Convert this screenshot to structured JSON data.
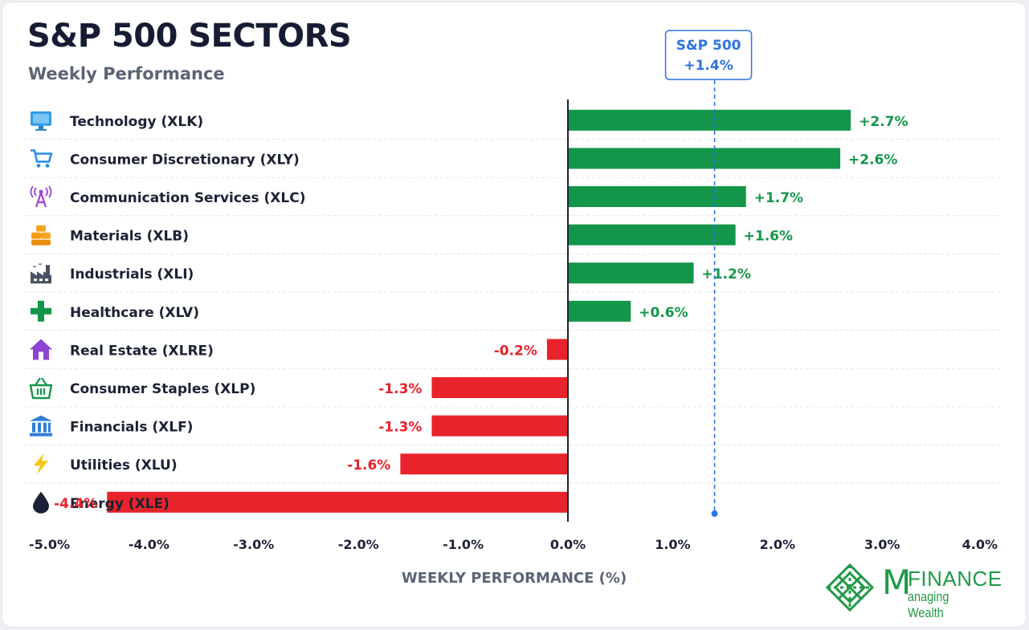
{
  "header": {
    "title": "S&P 500 SECTORS",
    "subtitle": "Weekly Performance"
  },
  "benchmark": {
    "label": "S&P 500",
    "value_label": "+1.4%",
    "value": 1.4
  },
  "colors": {
    "positive": "#13964a",
    "negative": "#e8232b",
    "benchmark": "#2d74e0",
    "text": "#1c2235"
  },
  "chart_data": {
    "type": "bar",
    "orientation": "horizontal",
    "title": "S&P 500 SECTORS",
    "subtitle": "Weekly Performance",
    "xlabel": "WEEKLY PERFORMANCE (%)",
    "xlim": [
      -5.0,
      4.0
    ],
    "ticks": [
      -5.0,
      -4.0,
      -3.0,
      -2.0,
      -1.0,
      0.0,
      1.0,
      2.0,
      3.0,
      4.0
    ],
    "tick_labels": [
      "-5.0%",
      "-4.0%",
      "-3.0%",
      "-2.0%",
      "-1.0%",
      "0.0%",
      "1.0%",
      "2.0%",
      "3.0%",
      "4.0%"
    ],
    "grid": true,
    "categories": [
      "Technology (XLK)",
      "Consumer Discretionary (XLY)",
      "Communication Services (XLC)",
      "Materials (XLB)",
      "Industrials (XLI)",
      "Healthcare (XLV)",
      "Real Estate (XLRE)",
      "Consumer Staples (XLP)",
      "Financials (XLF)",
      "Utilities (XLU)",
      "Energy (XLE)"
    ],
    "values": [
      2.7,
      2.6,
      1.7,
      1.6,
      1.2,
      0.6,
      -0.2,
      -1.3,
      -1.3,
      -1.6,
      -4.4
    ],
    "value_labels": [
      "+2.7%",
      "+2.6%",
      "+1.7%",
      "+1.6%",
      "+1.2%",
      "+0.6%",
      "-0.2%",
      "-1.3%",
      "-1.3%",
      "-1.6%",
      "-4.4%"
    ],
    "icons": [
      "monitor-icon",
      "shopping-cart-icon",
      "broadcast-tower-icon",
      "stacked-bars-icon",
      "factory-icon",
      "medical-cross-icon",
      "house-icon",
      "basket-icon",
      "bank-building-icon",
      "lightning-bolt-icon",
      "oil-drop-icon"
    ],
    "reference_line": {
      "label": "S&P 500",
      "value": 1.4
    }
  },
  "brand": {
    "initial": "M",
    "name": "FINANCE",
    "tagline": "anaging Wealth"
  }
}
